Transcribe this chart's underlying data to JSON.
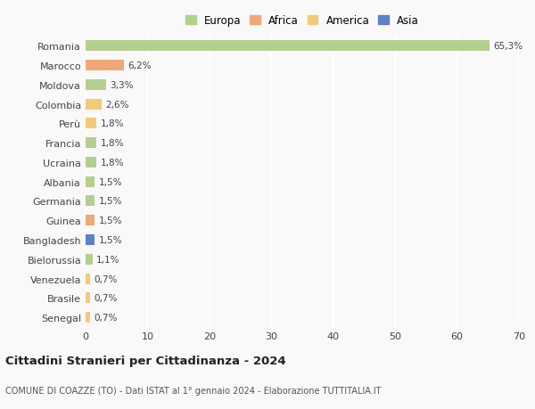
{
  "categories": [
    "Senegal",
    "Brasile",
    "Venezuela",
    "Bielorussia",
    "Bangladesh",
    "Guinea",
    "Germania",
    "Albania",
    "Ucraina",
    "Francia",
    "Perù",
    "Colombia",
    "Moldova",
    "Marocco",
    "Romania"
  ],
  "values": [
    0.7,
    0.7,
    0.7,
    1.1,
    1.5,
    1.5,
    1.5,
    1.5,
    1.8,
    1.8,
    1.8,
    2.6,
    3.3,
    6.2,
    65.3
  ],
  "colors": [
    "#f5c97a",
    "#f5c97a",
    "#f5c97a",
    "#b5cf8f",
    "#6080c8",
    "#f0a878",
    "#b5cf8f",
    "#b5cf8f",
    "#b5cf8f",
    "#b5cf8f",
    "#f5c97a",
    "#f5c97a",
    "#b5cf8f",
    "#f0a878",
    "#b5cf8f"
  ],
  "labels": [
    "0,7%",
    "0,7%",
    "0,7%",
    "1,1%",
    "1,5%",
    "1,5%",
    "1,5%",
    "1,5%",
    "1,8%",
    "1,8%",
    "1,8%",
    "2,6%",
    "3,3%",
    "6,2%",
    "65,3%"
  ],
  "legend_labels": [
    "Europa",
    "Africa",
    "America",
    "Asia"
  ],
  "legend_colors": [
    "#b5cf8f",
    "#f0a878",
    "#f5c97a",
    "#6080c8"
  ],
  "title": "Cittadini Stranieri per Cittadinanza - 2024",
  "subtitle": "COMUNE DI COAZZE (TO) - Dati ISTAT al 1° gennaio 2024 - Elaborazione TUTTITALIA.IT",
  "xlim": [
    0,
    70
  ],
  "xticks": [
    0,
    10,
    20,
    30,
    40,
    50,
    60,
    70
  ],
  "background_color": "#f9f9f9",
  "grid_color": "#ffffff",
  "bar_height": 0.55
}
